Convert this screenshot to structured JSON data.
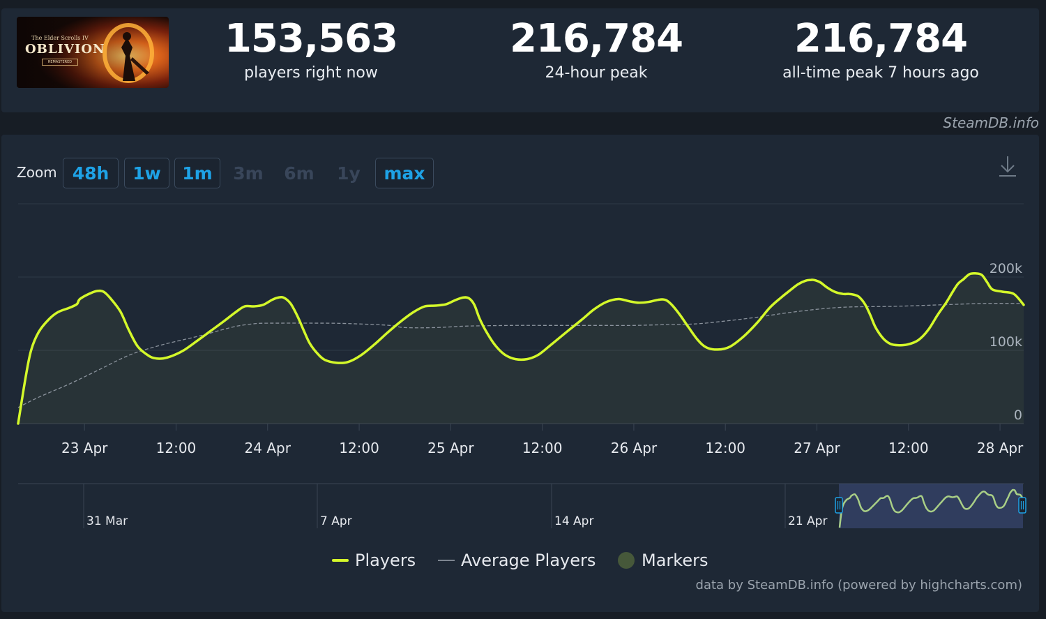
{
  "game": {
    "logo_text": "OBLIVION",
    "logo_subtext": "The Elder Scrolls IV",
    "logo_badge": "REMASTERED"
  },
  "stats": [
    {
      "value": "153,563",
      "label": "players right now"
    },
    {
      "value": "216,784",
      "label": "24-hour peak"
    },
    {
      "value": "216,784",
      "label": "all-time peak 7 hours ago"
    }
  ],
  "attribution": "SteamDB.info",
  "zoom": {
    "label": "Zoom",
    "buttons": [
      {
        "label": "48h",
        "enabled": true
      },
      {
        "label": "1w",
        "enabled": true
      },
      {
        "label": "1m",
        "enabled": true
      },
      {
        "label": "3m",
        "enabled": false
      },
      {
        "label": "6m",
        "enabled": false
      },
      {
        "label": "1y",
        "enabled": false
      },
      {
        "label": "max",
        "enabled": true
      }
    ]
  },
  "legend": {
    "players": "Players",
    "average": "Average Players",
    "markers": "Markers"
  },
  "credits": "data by SteamDB.info (powered by highcharts.com)",
  "colors": {
    "players": "#d4f82a",
    "average": "#8a929c",
    "markers": "#46583a",
    "accent": "#1ea2e6",
    "navigator_mask": "#3f4f80"
  },
  "chart_data": {
    "type": "line",
    "x_labels": [
      "23 Apr",
      "12:00",
      "24 Apr",
      "12:00",
      "25 Apr",
      "12:00",
      "26 Apr",
      "12:00",
      "27 Apr",
      "12:00",
      "28 Apr"
    ],
    "x_label_hours": [
      24,
      36,
      48,
      60,
      72,
      84,
      96,
      108,
      120,
      132,
      144
    ],
    "x_range_hours": [
      15.3,
      147.1
    ],
    "y_ticks": [
      "0",
      "100k",
      "200k"
    ],
    "y_tick_values": [
      0,
      100000,
      200000
    ],
    "ylim": [
      0,
      200000
    ],
    "series": [
      {
        "name": "Players",
        "x_hours": [
          15.3,
          16.3,
          17.0,
          18.0,
          19.3,
          20.5,
          22.0,
          23.0,
          23.4,
          24.8,
          25.7,
          26.5,
          27.4,
          28.7,
          29.8,
          31.0,
          32.5,
          33.4,
          34.3,
          35.4,
          37.0,
          38.9,
          40.6,
          42.3,
          43.8,
          45.0,
          46.2,
          47.4,
          48.6,
          49.4,
          50.1,
          51.0,
          51.9,
          52.7,
          53.5,
          54.5,
          55.5,
          57.0,
          58.5,
          60.2,
          62.0,
          63.7,
          65.4,
          67.1,
          68.6,
          70.1,
          71.4,
          72.5,
          73.6,
          74.4,
          75.1,
          75.8,
          76.8,
          77.9,
          79.1,
          80.5,
          82.0,
          83.5,
          85.3,
          87.3,
          89.2,
          90.8,
          92.4,
          94.0,
          95.4,
          96.6,
          97.9,
          99.2,
          100.1,
          100.9,
          102.0,
          103.2,
          104.4,
          105.5,
          107.0,
          108.6,
          110.4,
          112.2,
          113.8,
          115.3,
          116.5,
          117.5,
          118.5,
          119.2,
          119.6,
          120.4,
          121.3,
          122.3,
          123.4,
          124.2,
          124.8,
          125.5,
          126.3,
          127.0,
          127.7,
          128.7,
          129.6,
          130.6,
          131.9,
          133.3,
          134.6,
          135.8,
          137.0,
          137.8,
          138.5,
          139.2,
          140.0,
          140.8,
          141.6,
          142.3,
          143.0,
          144.3,
          145.8,
          147.1
        ],
        "values": [
          0,
          64000,
          100000,
          125000,
          142000,
          152000,
          158000,
          163000,
          170000,
          178000,
          181000,
          180000,
          171000,
          153000,
          128000,
          105000,
          92000,
          89000,
          89000,
          92000,
          100000,
          114000,
          127000,
          140000,
          152000,
          160000,
          160000,
          162000,
          169000,
          172000,
          172000,
          164000,
          147000,
          128000,
          110000,
          96000,
          87000,
          83000,
          84000,
          93000,
          108000,
          124000,
          139000,
          152000,
          160000,
          161000,
          163000,
          168000,
          172000,
          171000,
          162000,
          143000,
          123000,
          106000,
          94000,
          88000,
          88000,
          94000,
          109000,
          126000,
          142000,
          156000,
          166000,
          170000,
          167000,
          165000,
          166000,
          169000,
          169000,
          163000,
          149000,
          131000,
          114000,
          104000,
          101000,
          105000,
          119000,
          138000,
          158000,
          172000,
          182000,
          190000,
          195000,
          196000,
          196000,
          193000,
          186000,
          180000,
          177000,
          177000,
          176000,
          173000,
          163000,
          148000,
          131000,
          116000,
          109000,
          107000,
          108000,
          114000,
          128000,
          148000,
          166000,
          180000,
          191000,
          197000,
          204000,
          205000,
          203000,
          193000,
          183000,
          180000,
          177000,
          162000
        ]
      },
      {
        "name": "Average Players",
        "x_hours": [
          15.3,
          18,
          22,
          26,
          30,
          34,
          38,
          40,
          42,
          44,
          46,
          48,
          56,
          60,
          64,
          66,
          70,
          74,
          80,
          84,
          88,
          92,
          96,
          100,
          104,
          108,
          112,
          116,
          120,
          124,
          130,
          136,
          142,
          147.1
        ],
        "values": [
          22000,
          36000,
          54000,
          74000,
          94000,
          107000,
          117000,
          122000,
          128000,
          133000,
          136000,
          137000,
          137000,
          136000,
          134000,
          131000,
          131000,
          133000,
          134000,
          134000,
          134000,
          134000,
          134000,
          135000,
          136000,
          140000,
          145000,
          151000,
          156000,
          159000,
          160000,
          162000,
          164000,
          164000
        ]
      }
    ],
    "navigator": {
      "x_labels": [
        "31 Mar",
        "7 Apr",
        "14 Apr",
        "21 Apr"
      ],
      "selection": "22 Apr – 28 Apr"
    }
  }
}
